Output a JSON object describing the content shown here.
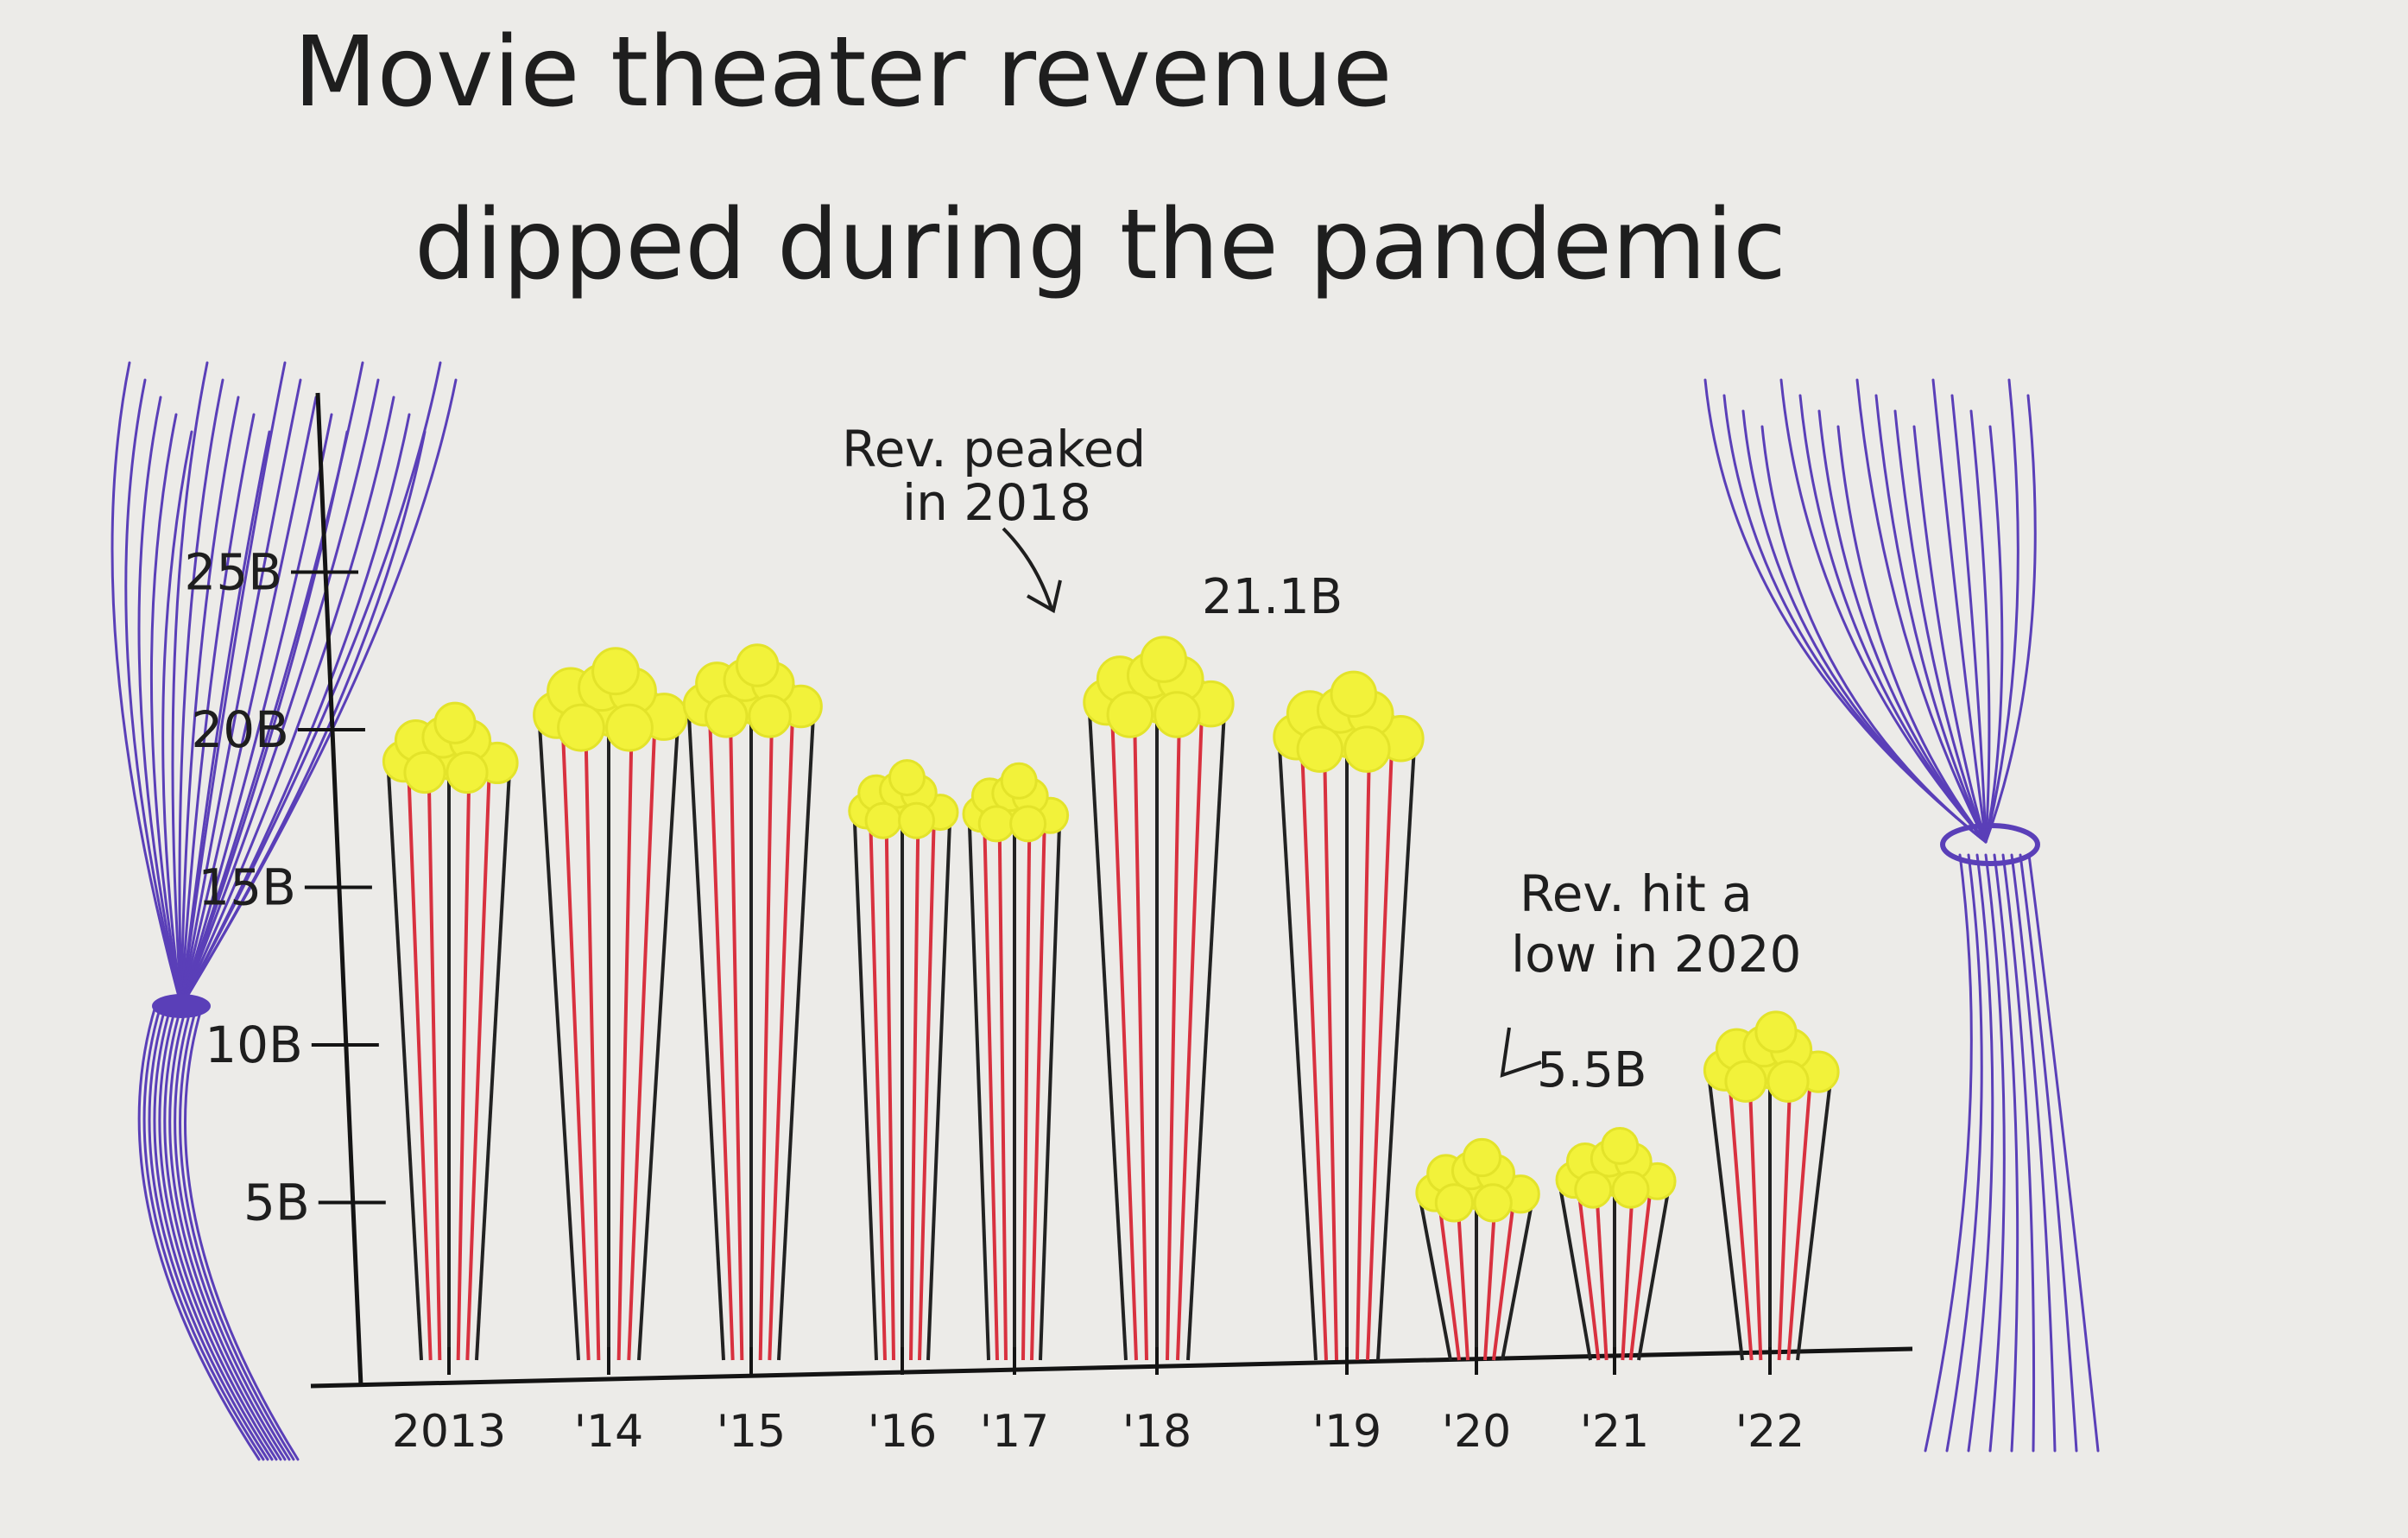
{
  "chart_data": {
    "type": "bar",
    "title_line1": "Movie theater revenue",
    "title_line2": "dipped during the pandemic",
    "categories": [
      "2013",
      "'14",
      "'15",
      "'16",
      "'17",
      "'18",
      "'19",
      "'20",
      "'21",
      "'22"
    ],
    "values": [
      19.2,
      20.7,
      21.0,
      17.6,
      17.5,
      21.1,
      20.0,
      5.5,
      5.9,
      9.4
    ],
    "y_ticks": [
      5,
      10,
      15,
      20,
      25
    ],
    "y_tick_labels": [
      "5B",
      "10B",
      "15B",
      "20B",
      "25B"
    ],
    "ylim": [
      0,
      30
    ],
    "xlabel": "",
    "ylabel": "",
    "grid": false,
    "annotations": {
      "peak_line1": "Rev. peaked",
      "peak_line2": "in 2018",
      "peak_value": "21.1B",
      "low_line1": "Rev. hit a",
      "low_line2": "low in 2020",
      "low_value": "5.5B"
    },
    "colors": {
      "popcorn": "#f2f23a",
      "stripe_red": "#d8313f",
      "stripe_dark": "#222222",
      "curtain": "#5a3fb8",
      "axis": "#141414",
      "paper": "#ecebe8"
    }
  }
}
